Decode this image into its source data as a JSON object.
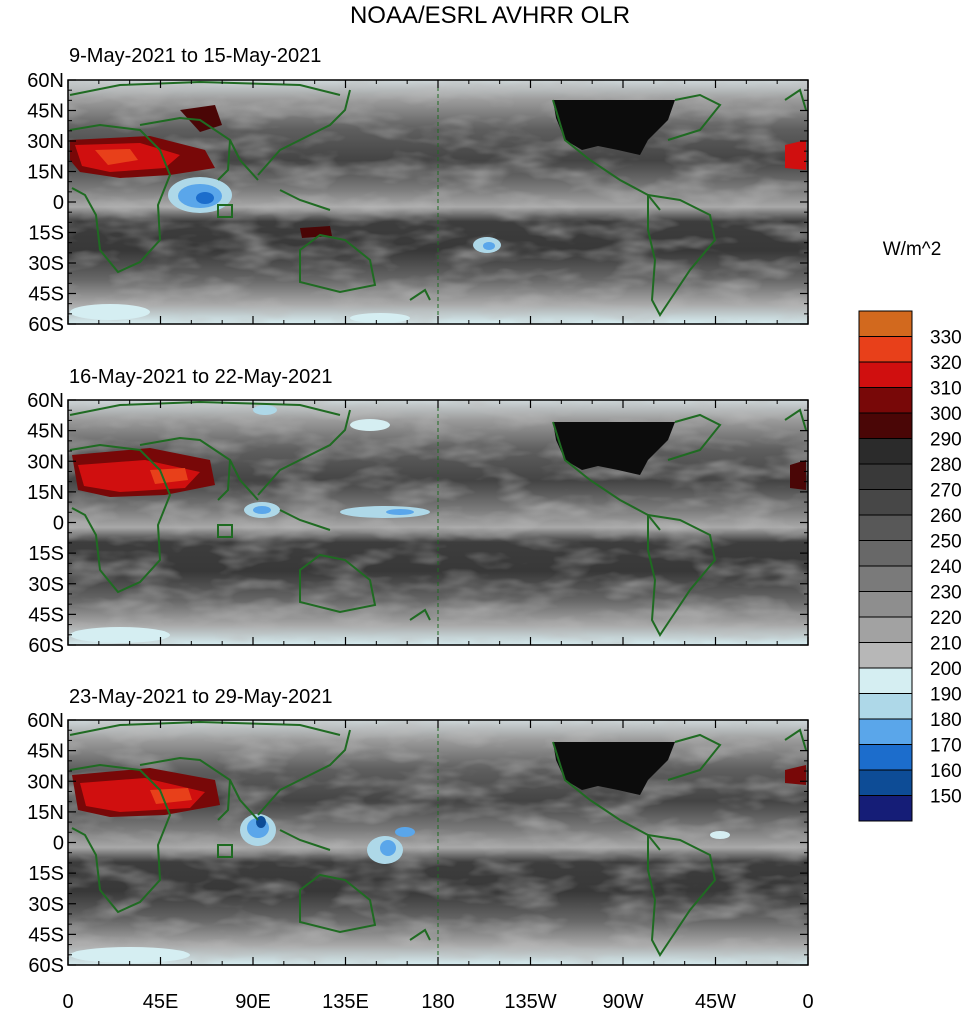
{
  "title": "NOAA/ESRL AVHRR OLR",
  "units_label": "W/m^2",
  "panels": [
    {
      "period": "9-May-2021 to 15-May-2021"
    },
    {
      "period": "16-May-2021 to 22-May-2021"
    },
    {
      "period": "23-May-2021 to 29-May-2021"
    }
  ],
  "lat_ticks": [
    "60N",
    "45N",
    "30N",
    "15N",
    "0",
    "15S",
    "30S",
    "45S",
    "60S"
  ],
  "lon_ticks": [
    "0",
    "45E",
    "90E",
    "135E",
    "180",
    "135W",
    "90W",
    "45W",
    "0"
  ],
  "colorbar": {
    "levels": [
      "330",
      "320",
      "310",
      "300",
      "290",
      "280",
      "270",
      "260",
      "250",
      "240",
      "230",
      "220",
      "210",
      "200",
      "190",
      "180",
      "170",
      "160",
      "150"
    ],
    "colors": [
      "#d2691e",
      "#e8401a",
      "#d00f0f",
      "#780808",
      "#4a0606",
      "#2b2b2b",
      "#393939",
      "#474747",
      "#585858",
      "#686868",
      "#7a7a7a",
      "#8e8e8e",
      "#a2a2a2",
      "#b7b7b7",
      "#d5eef2",
      "#aed8e8",
      "#5aa6ea",
      "#1c6dcc",
      "#0d4c96",
      "#151d77"
    ]
  },
  "colors": {
    "coastline": "#1f6b22",
    "usa_mask": "#0c0c0c",
    "deep_convection_blue": "#3f86d6",
    "hot_desert_red": "#c81010"
  }
}
